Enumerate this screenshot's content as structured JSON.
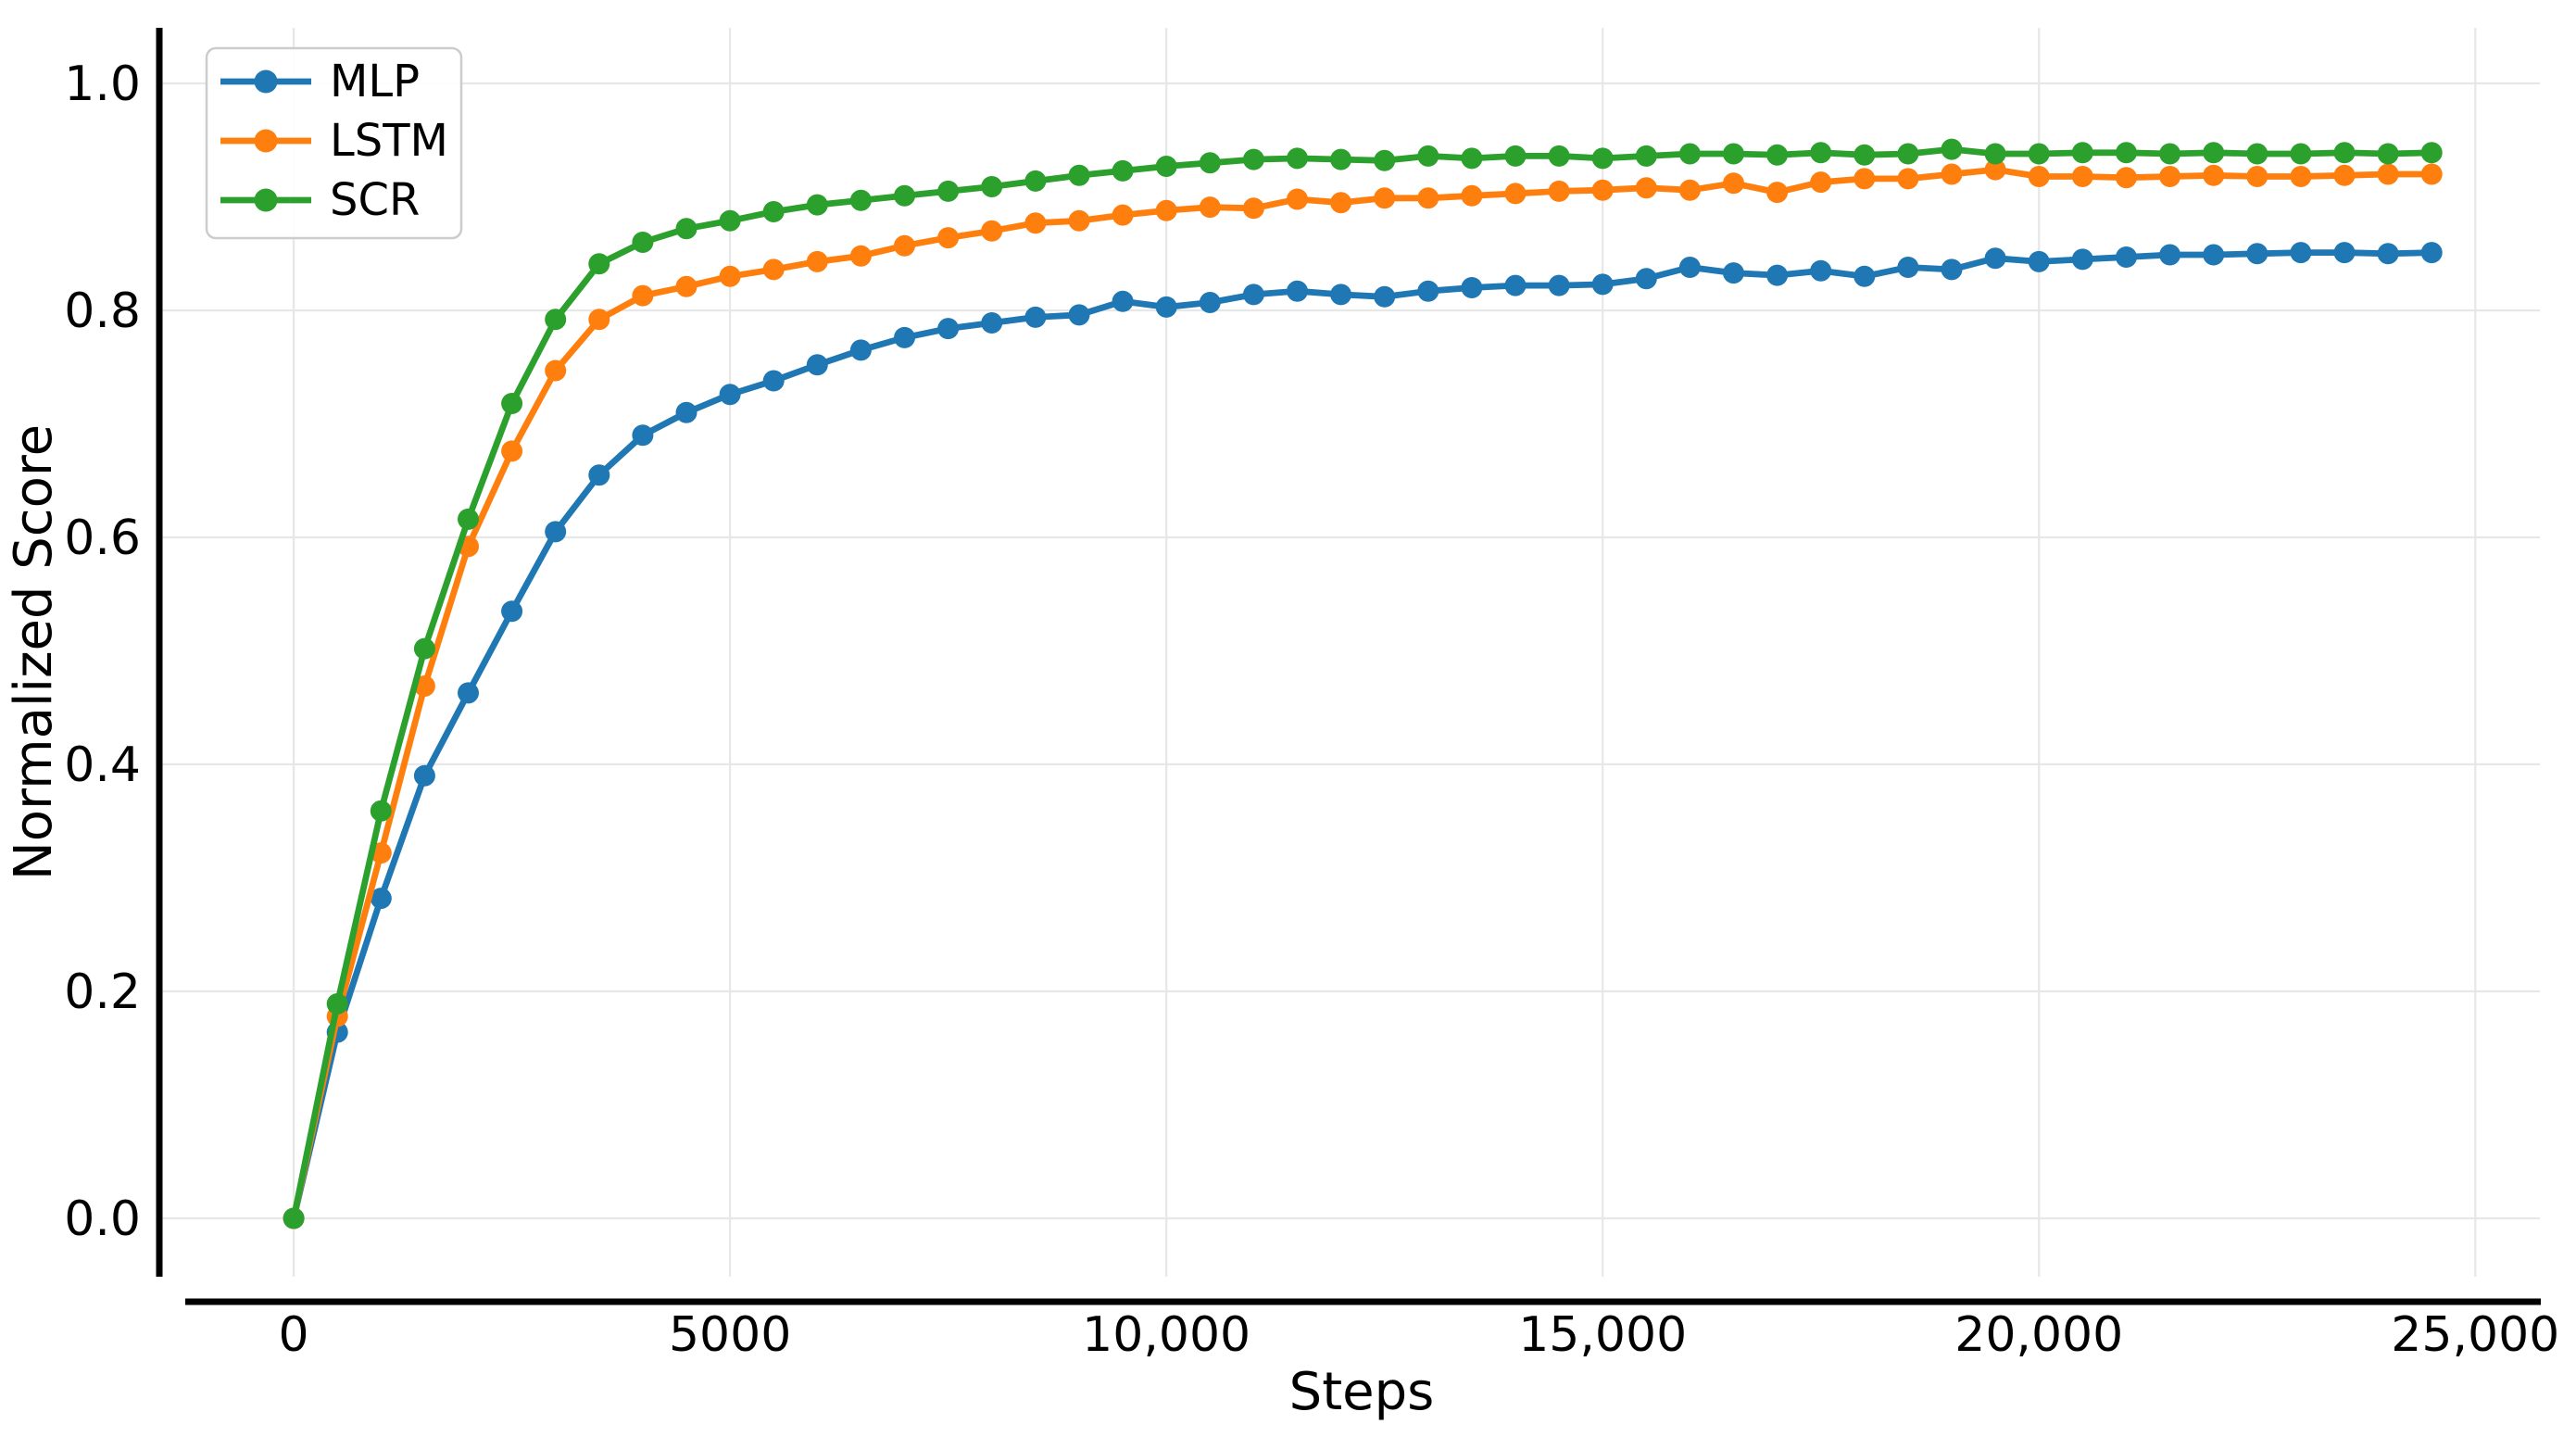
{
  "chart_data": {
    "type": "line",
    "title": "",
    "xlabel": "Steps",
    "ylabel": "Normalized Score",
    "x": [
      0,
      500,
      1000,
      1500,
      2000,
      2500,
      3000,
      3500,
      4000,
      4500,
      5000,
      5500,
      6000,
      6500,
      7000,
      7500,
      8000,
      8500,
      9000,
      9500,
      10000,
      10500,
      11000,
      11500,
      12000,
      12500,
      13000,
      13500,
      14000,
      14500,
      15000,
      15500,
      16000,
      16500,
      17000,
      17500,
      18000,
      18500,
      19000,
      19500,
      20000,
      20500,
      21000,
      21500,
      22000,
      22500,
      23000,
      23500,
      24000,
      24500
    ],
    "series": [
      {
        "name": "MLP",
        "color": "#1f77b4",
        "values": [
          0.0,
          0.164,
          0.282,
          0.39,
          0.463,
          0.535,
          0.605,
          0.655,
          0.69,
          0.71,
          0.726,
          0.738,
          0.752,
          0.765,
          0.776,
          0.784,
          0.789,
          0.794,
          0.796,
          0.808,
          0.803,
          0.807,
          0.814,
          0.817,
          0.814,
          0.812,
          0.817,
          0.82,
          0.822,
          0.822,
          0.823,
          0.828,
          0.838,
          0.833,
          0.831,
          0.835,
          0.83,
          0.838,
          0.836,
          0.846,
          0.843,
          0.845,
          0.847,
          0.849,
          0.849,
          0.85,
          0.851,
          0.851,
          0.85,
          0.851
        ]
      },
      {
        "name": "LSTM",
        "color": "#ff7f0e",
        "values": [
          0.0,
          0.178,
          0.322,
          0.469,
          0.592,
          0.676,
          0.747,
          0.792,
          0.813,
          0.821,
          0.83,
          0.836,
          0.843,
          0.848,
          0.857,
          0.864,
          0.87,
          0.877,
          0.879,
          0.884,
          0.888,
          0.891,
          0.89,
          0.898,
          0.895,
          0.899,
          0.899,
          0.901,
          0.903,
          0.905,
          0.906,
          0.908,
          0.906,
          0.912,
          0.904,
          0.913,
          0.916,
          0.916,
          0.92,
          0.924,
          0.918,
          0.918,
          0.917,
          0.918,
          0.919,
          0.918,
          0.918,
          0.919,
          0.92,
          0.92
        ]
      },
      {
        "name": "SCR",
        "color": "#2ca02c",
        "values": [
          0.0,
          0.189,
          0.359,
          0.502,
          0.616,
          0.718,
          0.792,
          0.841,
          0.86,
          0.872,
          0.879,
          0.887,
          0.893,
          0.897,
          0.901,
          0.905,
          0.909,
          0.914,
          0.919,
          0.923,
          0.927,
          0.93,
          0.933,
          0.934,
          0.933,
          0.932,
          0.936,
          0.934,
          0.936,
          0.936,
          0.934,
          0.936,
          0.938,
          0.938,
          0.937,
          0.939,
          0.937,
          0.938,
          0.942,
          0.938,
          0.938,
          0.939,
          0.939,
          0.938,
          0.939,
          0.938,
          0.938,
          0.939,
          0.938,
          0.939
        ]
      }
    ],
    "xticks": {
      "values": [
        0,
        5000,
        10000,
        15000,
        20000,
        25000
      ],
      "labels": [
        "0",
        "5000",
        "10,000",
        "15,000",
        "20,000",
        "25,000"
      ]
    },
    "yticks": {
      "values": [
        0.0,
        0.2,
        0.4,
        0.6,
        0.8,
        1.0
      ],
      "labels": [
        "0.0",
        "0.2",
        "0.4",
        "0.6",
        "0.8",
        "1.0"
      ]
    },
    "xlim": [
      -1540,
      25740
    ],
    "ylim": [
      -0.0514,
      1.049
    ],
    "grid": true,
    "grid_color": "#e7e7e7",
    "axis_color": "#000000",
    "background": "#ffffff",
    "legend_position": "upper left",
    "marker": "circle",
    "line_width": 6.8,
    "marker_radius": 11.5
  }
}
